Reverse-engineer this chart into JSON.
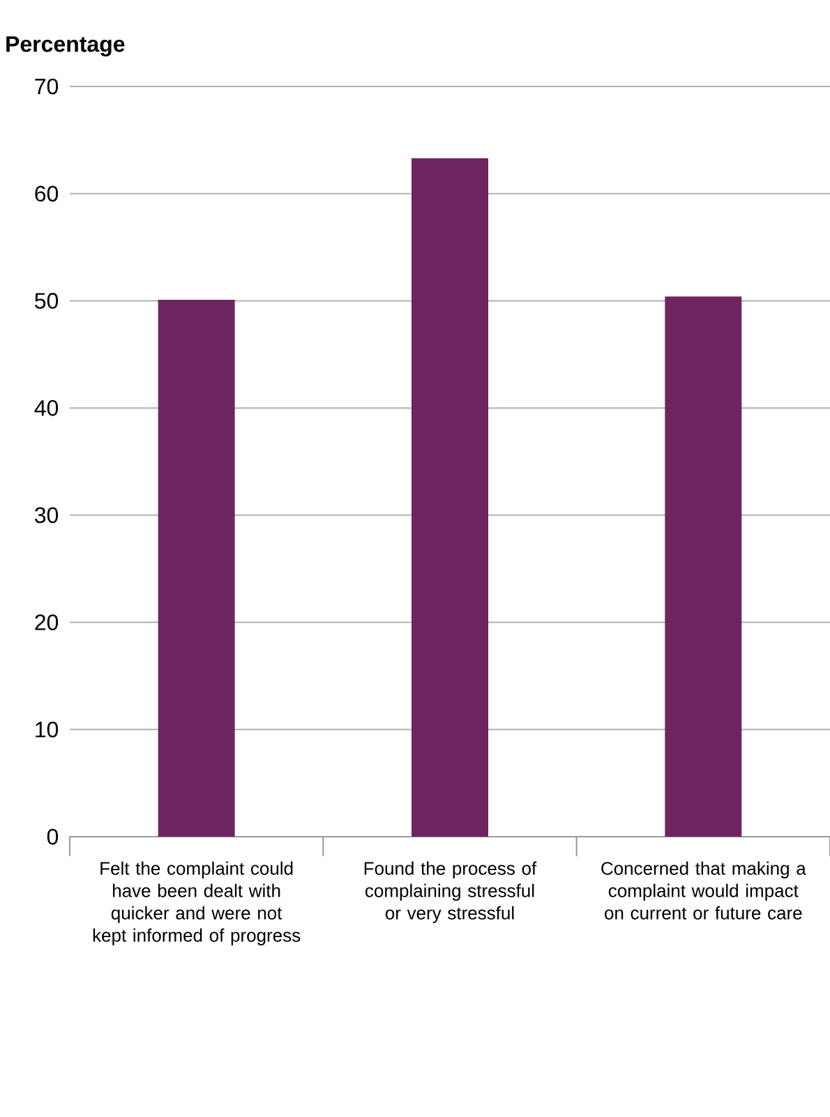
{
  "chart_data": {
    "type": "bar",
    "ylabel": "Percentage",
    "categories": [
      "Felt the complaint could have been dealt with quicker and were not kept informed of progress",
      "Found the process of complaining stressful or very stressful",
      "Concerned that making a complaint would impact on current or future care"
    ],
    "values": [
      50.1,
      63.3,
      50.4
    ],
    "color": "#6e2562",
    "ylim": [
      0,
      70
    ],
    "yticks": [
      0,
      10,
      20,
      30,
      40,
      50,
      60,
      70
    ],
    "grid": "y"
  }
}
